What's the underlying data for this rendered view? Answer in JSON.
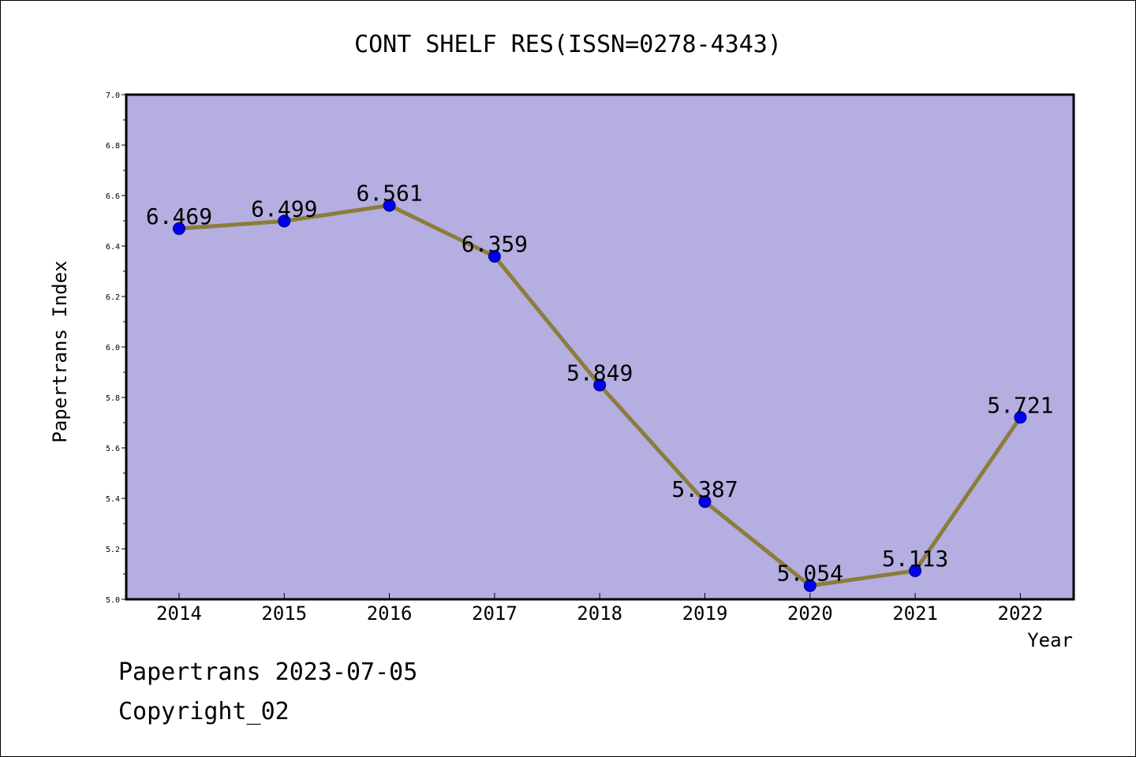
{
  "chart_data": {
    "type": "line",
    "title": "CONT SHELF RES(ISSN=0278-4343)",
    "xlabel": "Year",
    "ylabel": "Papertrans Index",
    "categories": [
      "2014",
      "2015",
      "2016",
      "2017",
      "2018",
      "2019",
      "2020",
      "2021",
      "2022"
    ],
    "series": [
      {
        "values": [
          6.469,
          6.499,
          6.561,
          6.359,
          5.849,
          5.387,
          5.054,
          5.113,
          5.721
        ],
        "labels": [
          "6.469",
          "6.499",
          "6.561",
          "6.359",
          "5.849",
          "5.387",
          "5.054",
          "5.113",
          "5.721"
        ]
      }
    ],
    "ylim": [
      5.0,
      7.0
    ],
    "yticks": [
      "5.0",
      "5.2",
      "5.4",
      "5.6",
      "5.8",
      "6.0",
      "6.2",
      "6.4",
      "6.6",
      "6.8",
      "7.0"
    ],
    "grid": false,
    "colors": {
      "plot_background": "#b4aee1",
      "line": "#8b7d3a",
      "marker": "#0000ee"
    }
  },
  "footer": {
    "date_line": "Papertrans 2023-07-05",
    "copyright_line": "Copyright_02"
  }
}
